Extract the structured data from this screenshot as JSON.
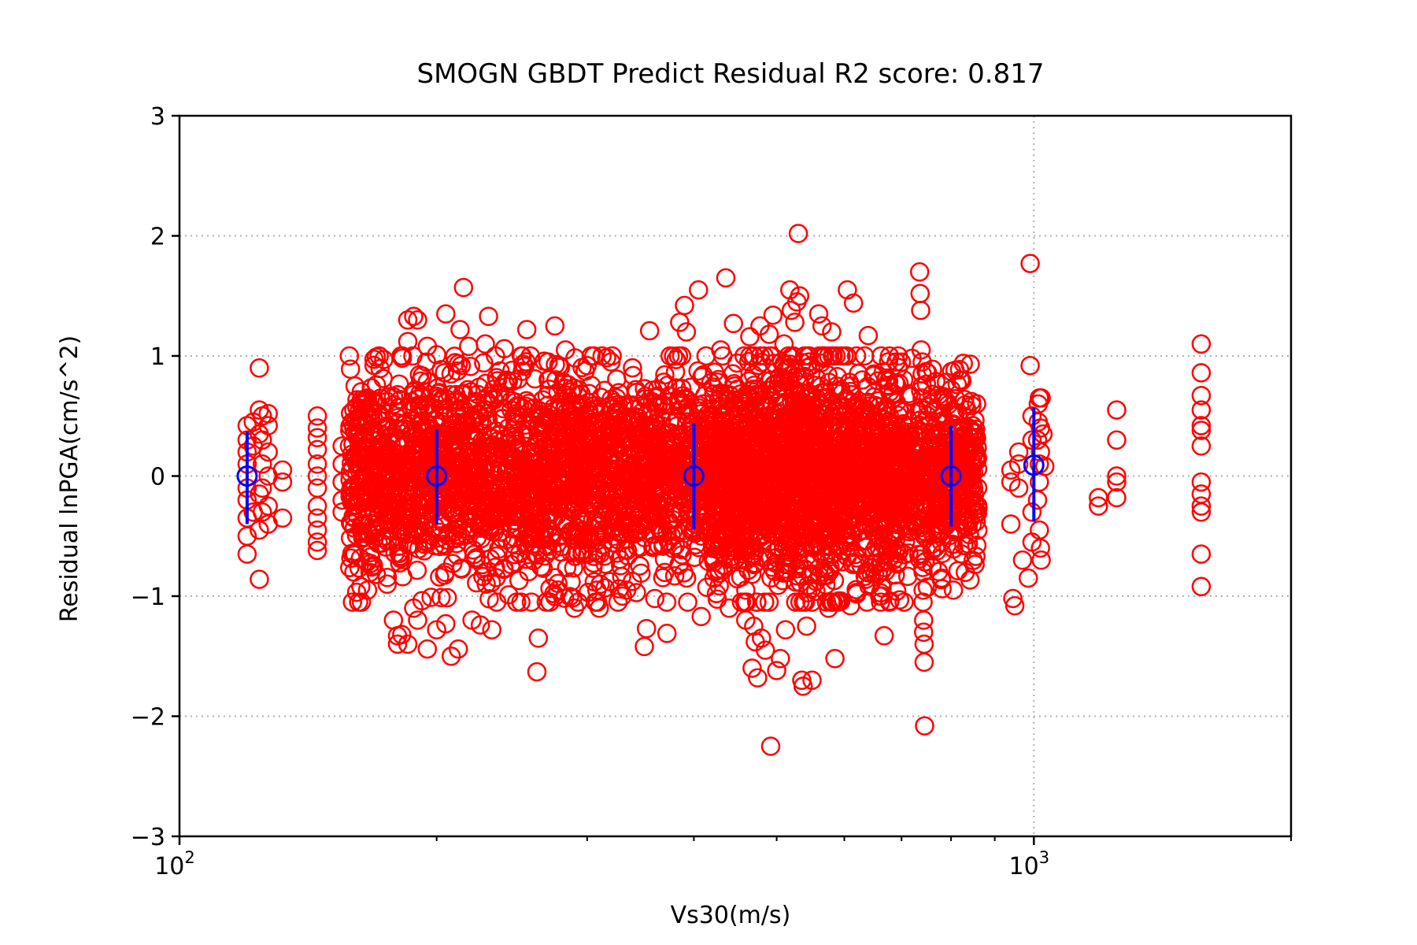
{
  "chart_data": {
    "type": "scatter",
    "title": "SMOGN GBDT Predict Residual R2 score: 0.817",
    "xlabel": "Vs30(m/s)",
    "ylabel": "Residual lnPGA(cm/s^2)",
    "x_scale": "log",
    "xlim": [
      100,
      2000
    ],
    "ylim": [
      -3,
      3
    ],
    "x_tick_labels": [
      {
        "value": 100,
        "base": "10",
        "exp": "2"
      },
      {
        "value": 1000,
        "base": "10",
        "exp": "3"
      }
    ],
    "y_ticks": [
      -3,
      -2,
      -1,
      0,
      1,
      2,
      3
    ],
    "y_tick_labels": [
      "−3",
      "−2",
      "−1",
      "0",
      "1",
      "2",
      "3"
    ],
    "grid": true,
    "colors": {
      "points": "#ff0000",
      "bins": "#0000ff",
      "grid": "#b0b0b0"
    },
    "series": [
      {
        "marker": "open-circle",
        "color": "#ff0000",
        "points": [
          [
            120,
            0.42
          ],
          [
            120,
            0.3
          ],
          [
            120,
            0.2
          ],
          [
            120,
            0.1
          ],
          [
            120,
            -0.1
          ],
          [
            120,
            -0.2
          ],
          [
            120,
            -0.35
          ],
          [
            120,
            -0.5
          ],
          [
            120,
            -0.65
          ],
          [
            122,
            0.45
          ],
          [
            122,
            0.25
          ],
          [
            122,
            -0.3
          ],
          [
            124,
            0.9
          ],
          [
            124,
            0.55
          ],
          [
            124,
            0.35
          ],
          [
            124,
            -0.15
          ],
          [
            124,
            -0.45
          ],
          [
            124,
            -0.86
          ],
          [
            125,
            0.5
          ],
          [
            125,
            0.3
          ],
          [
            125,
            0.1
          ],
          [
            125,
            -0.1
          ],
          [
            125,
            -0.3
          ],
          [
            127,
            0.52
          ],
          [
            127,
            0.42
          ],
          [
            127,
            0.2
          ],
          [
            127,
            0
          ],
          [
            127,
            -0.25
          ],
          [
            127,
            -0.4
          ],
          [
            132,
            0.05
          ],
          [
            132,
            -0.05
          ],
          [
            132,
            -0.35
          ],
          [
            145,
            0.5
          ],
          [
            145,
            0.4
          ],
          [
            145,
            0.32
          ],
          [
            145,
            0.22
          ],
          [
            145,
            0.1
          ],
          [
            145,
            0
          ],
          [
            145,
            -0.1
          ],
          [
            145,
            -0.25
          ],
          [
            145,
            -0.35
          ],
          [
            145,
            -0.45
          ],
          [
            145,
            -0.55
          ],
          [
            145,
            -0.62
          ],
          [
            155,
            0.25
          ],
          [
            155,
            0.1
          ],
          [
            155,
            -0.05
          ],
          [
            155,
            -0.2
          ],
          [
            155,
            -0.3
          ],
          [
            160,
            0.55
          ],
          [
            160,
            -0.8
          ],
          [
            163,
            0.6
          ],
          [
            163,
            -0.92
          ],
          [
            166,
            0.65
          ],
          [
            166,
            -0.95
          ],
          [
            170,
            0.99
          ],
          [
            170,
            0.76
          ],
          [
            170,
            -0.82
          ],
          [
            175,
            0.62
          ],
          [
            175,
            -0.9
          ],
          [
            178,
            -1.2
          ],
          [
            180,
            -1.4
          ],
          [
            180,
            -1.33
          ],
          [
            182,
            -1.32
          ],
          [
            185,
            1.3
          ],
          [
            185,
            1.12
          ],
          [
            185,
            -1.4
          ],
          [
            188,
            1.33
          ],
          [
            188,
            -1.1
          ],
          [
            190,
            1.3
          ],
          [
            190,
            -1.2
          ],
          [
            195,
            1.08
          ],
          [
            195,
            -1.44
          ],
          [
            197,
            -1.01
          ],
          [
            200,
            1.01
          ],
          [
            200,
            -1.28
          ],
          [
            205,
            1.35
          ],
          [
            205,
            -1.23
          ],
          [
            208,
            -1.5
          ],
          [
            212,
            -1.44
          ],
          [
            213,
            1.22
          ],
          [
            215,
            1.57
          ],
          [
            218,
            1.08
          ],
          [
            220,
            -1.2
          ],
          [
            225,
            -1.24
          ],
          [
            228,
            1.1
          ],
          [
            230,
            1.33
          ],
          [
            232,
            -1.28
          ],
          [
            235,
            0.82
          ],
          [
            240,
            1.06
          ],
          [
            245,
            0.88
          ],
          [
            255,
            1.22
          ],
          [
            262,
            -1.63
          ],
          [
            263,
            -1.35
          ],
          [
            270,
            0.95
          ],
          [
            275,
            1.25
          ],
          [
            278,
            0.92
          ],
          [
            283,
            1.05
          ],
          [
            290,
            -1.1
          ],
          [
            300,
            0.92
          ],
          [
            308,
            -0.95
          ],
          [
            310,
            -1.1
          ],
          [
            320,
            0.95
          ],
          [
            330,
            -1.0
          ],
          [
            350,
            -1.42
          ],
          [
            352,
            -1.27
          ],
          [
            355,
            1.21
          ],
          [
            360,
            -1.02
          ],
          [
            372,
            -1.31
          ],
          [
            385,
            1.28
          ],
          [
            390,
            1.42
          ],
          [
            392,
            1.2
          ],
          [
            405,
            1.55
          ],
          [
            408,
            -1.17
          ],
          [
            430,
            1.05
          ],
          [
            436,
            1.65
          ],
          [
            440,
            -1.1
          ],
          [
            445,
            1.27
          ],
          [
            460,
            -1.2
          ],
          [
            465,
            1.16
          ],
          [
            468,
            -1.6
          ],
          [
            470,
            -1.25
          ],
          [
            472,
            -1.38
          ],
          [
            475,
            -1.68
          ],
          [
            478,
            1.25
          ],
          [
            480,
            -1.35
          ],
          [
            485,
            -1.45
          ],
          [
            490,
            1.18
          ],
          [
            492,
            -2.25
          ],
          [
            495,
            1.34
          ],
          [
            500,
            -1.62
          ],
          [
            505,
            -1.52
          ],
          [
            510,
            1.1
          ],
          [
            512,
            -1.28
          ],
          [
            518,
            1.55
          ],
          [
            520,
            1.38
          ],
          [
            525,
            1.28
          ],
          [
            528,
            1.45
          ],
          [
            530,
            2.02
          ],
          [
            532,
            1.5
          ],
          [
            535,
            -1.7
          ],
          [
            537,
            -1.75
          ],
          [
            542,
            -1.25
          ],
          [
            550,
            -1.7
          ],
          [
            560,
            1.35
          ],
          [
            565,
            1.25
          ],
          [
            575,
            -1.1
          ],
          [
            580,
            1.2
          ],
          [
            585,
            -1.52
          ],
          [
            600,
            1.0
          ],
          [
            605,
            1.55
          ],
          [
            610,
            -1.08
          ],
          [
            615,
            1.44
          ],
          [
            620,
            -0.97
          ],
          [
            630,
            0.8
          ],
          [
            640,
            1.17
          ],
          [
            650,
            0.85
          ],
          [
            660,
            -1.0
          ],
          [
            668,
            -1.33
          ],
          [
            690,
            0.95
          ],
          [
            705,
            -1.05
          ],
          [
            720,
            0.98
          ],
          [
            735,
            1.7
          ],
          [
            736,
            1.52
          ],
          [
            737,
            1.38
          ],
          [
            738,
            1.05
          ],
          [
            740,
            0.95
          ],
          [
            740,
            0.85
          ],
          [
            740,
            0.75
          ],
          [
            740,
            0.65
          ],
          [
            740,
            0.55
          ],
          [
            740,
            -0.65
          ],
          [
            742,
            -0.8
          ],
          [
            742,
            -0.95
          ],
          [
            742,
            -1.05
          ],
          [
            743,
            -1.2
          ],
          [
            743,
            -1.3
          ],
          [
            744,
            -1.4
          ],
          [
            744,
            -1.55
          ],
          [
            745,
            -2.08
          ],
          [
            760,
            0.68
          ],
          [
            760,
            -0.75
          ],
          [
            780,
            -0.85
          ],
          [
            790,
            0.78
          ],
          [
            800,
            0.72
          ],
          [
            805,
            -0.95
          ],
          [
            820,
            0.8
          ],
          [
            835,
            0.55
          ],
          [
            840,
            0.25
          ],
          [
            845,
            0.62
          ],
          [
            850,
            -0.1
          ],
          [
            860,
            -0.45
          ],
          [
            940,
            0.05
          ],
          [
            940,
            -0.05
          ],
          [
            940,
            -0.4
          ],
          [
            945,
            -1.02
          ],
          [
            950,
            -1.08
          ],
          [
            960,
            0.2
          ],
          [
            960,
            0.1
          ],
          [
            960,
            -0.1
          ],
          [
            970,
            -0.7
          ],
          [
            985,
            -0.85
          ],
          [
            990,
            1.77
          ],
          [
            990,
            0.92
          ],
          [
            995,
            0.5
          ],
          [
            995,
            0.3
          ],
          [
            995,
            -0.3
          ],
          [
            995,
            -0.55
          ],
          [
            1010,
            0.3
          ],
          [
            1010,
            -0.2
          ],
          [
            1012,
            0.6
          ],
          [
            1012,
            0.45
          ],
          [
            1015,
            0.65
          ],
          [
            1015,
            0.1
          ],
          [
            1015,
            -0.05
          ],
          [
            1015,
            -0.45
          ],
          [
            1018,
            0.4
          ],
          [
            1018,
            0.2
          ],
          [
            1018,
            -0.6
          ],
          [
            1020,
            0.65
          ],
          [
            1020,
            -0.7
          ],
          [
            1025,
            0.35
          ],
          [
            1030,
            0.08
          ],
          [
            1190,
            -0.18
          ],
          [
            1190,
            -0.25
          ],
          [
            1250,
            0.55
          ],
          [
            1250,
            0.3
          ],
          [
            1250,
            0
          ],
          [
            1250,
            -0.05
          ],
          [
            1250,
            -0.18
          ],
          [
            1570,
            1.1
          ],
          [
            1570,
            0.86
          ],
          [
            1570,
            0.67
          ],
          [
            1570,
            0.55
          ],
          [
            1570,
            0.42
          ],
          [
            1570,
            0.38
          ],
          [
            1570,
            0.25
          ],
          [
            1570,
            -0.05
          ],
          [
            1570,
            -0.15
          ],
          [
            1570,
            -0.25
          ],
          [
            1570,
            -0.3
          ],
          [
            1570,
            -0.65
          ],
          [
            1570,
            -0.92
          ]
        ]
      },
      {
        "marker": "open-circle",
        "color": "#0000ff",
        "error_bars": true,
        "points": [
          {
            "x": 120,
            "y": 0.0,
            "lo": -0.4,
            "hi": 0.37
          },
          {
            "x": 200,
            "y": 0.0,
            "lo": -0.4,
            "hi": 0.39
          },
          {
            "x": 400,
            "y": 0.0,
            "lo": -0.44,
            "hi": 0.44
          },
          {
            "x": 800,
            "y": 0.0,
            "lo": -0.42,
            "hi": 0.42
          },
          {
            "x": 1000,
            "y": 0.09,
            "lo": -0.38,
            "hi": 0.57
          }
        ]
      }
    ]
  }
}
